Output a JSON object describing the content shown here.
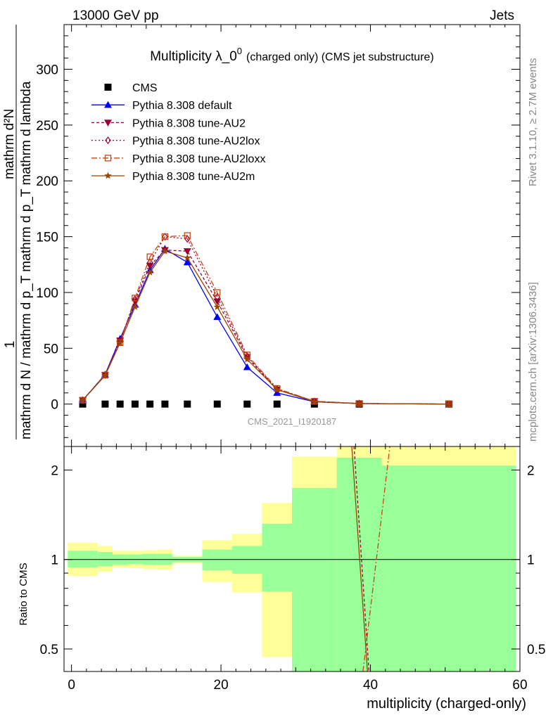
{
  "header": {
    "left": "13000 GeV pp",
    "right": "Jets"
  },
  "side_labels": {
    "rivet": "Rivet 3.1.10, ≥ 2.7M events",
    "mcplots": "mcplots.cern.ch [arXiv:1306.3436]"
  },
  "chart_data": [
    {
      "type": "line",
      "title_main": "Multiplicity λ_0",
      "title_sup": "0",
      "title_rest": "(charged only) (CMS jet substructure)",
      "ylabel_num": "1",
      "ylabel_den": "mathrm d N / mathrm d p_T mathrm d p_T mathrm d lambda",
      "ylabel_top": "mathrm d²N",
      "watermark": "CMS_2021_I1920187",
      "xlim": [
        -1,
        60
      ],
      "ylim": [
        -38,
        340
      ],
      "yticks": [
        0,
        50,
        100,
        150,
        200,
        250,
        300
      ],
      "legend_position": "top-left",
      "series": [
        {
          "name": "CMS",
          "color": "#000000",
          "marker": "square",
          "dash": "none",
          "x": [
            1.5,
            4.5,
            6.5,
            8.5,
            10.5,
            12.5,
            15.5,
            19.5,
            23.5,
            27.5,
            32.5,
            38.5,
            50.5
          ],
          "y": [
            0,
            0,
            0,
            0,
            0,
            0,
            0,
            0,
            0,
            0,
            0,
            0,
            0
          ]
        },
        {
          "name": "Pythia 8.308 default",
          "color": "#0000ff",
          "marker": "triangle-up",
          "dash": "solid",
          "x": [
            1.5,
            4.5,
            6.5,
            8.5,
            10.5,
            12.5,
            15.5,
            19.5,
            23.5,
            27.5,
            32.5,
            38.5,
            50.5
          ],
          "y": [
            3.5,
            26.5,
            58.5,
            89,
            120,
            139,
            127,
            78,
            33,
            10,
            2,
            0.5,
            0
          ]
        },
        {
          "name": "Pythia 8.308 tune-AU2",
          "color": "#990033",
          "marker": "triangle-down",
          "dash": "4,3",
          "x": [
            1.5,
            4.5,
            6.5,
            8.5,
            10.5,
            12.5,
            15.5,
            19.5,
            23.5,
            27.5,
            32.5,
            38.5,
            50.5
          ],
          "y": [
            3.5,
            26,
            57,
            92,
            124,
            138,
            137,
            92,
            42,
            13,
            2.5,
            0.5,
            0
          ]
        },
        {
          "name": "Pythia 8.308 tune-AU2lox",
          "color": "#990033",
          "marker": "diamond",
          "dash": "2,3",
          "x": [
            1.5,
            4.5,
            6.5,
            8.5,
            10.5,
            12.5,
            15.5,
            19.5,
            23.5,
            27.5,
            32.5,
            38.5,
            50.5
          ],
          "y": [
            3.5,
            26,
            56,
            94,
            127,
            150,
            148,
            96,
            43,
            13.5,
            2.5,
            0.5,
            0
          ]
        },
        {
          "name": "Pythia 8.308 tune-AU2loxx",
          "color": "#cc4411",
          "marker": "open-square",
          "dash": "8,3,2,3",
          "x": [
            1.5,
            4.5,
            6.5,
            8.5,
            10.5,
            12.5,
            15.5,
            19.5,
            23.5,
            27.5,
            32.5,
            38.5,
            50.5
          ],
          "y": [
            3.5,
            26,
            55,
            95,
            132,
            150,
            151,
            100,
            44,
            14,
            2.5,
            0.5,
            0
          ]
        },
        {
          "name": "Pythia 8.308 tune-AU2m",
          "color": "#994400",
          "marker": "star",
          "dash": "solid",
          "x": [
            1.5,
            4.5,
            6.5,
            8.5,
            10.5,
            12.5,
            15.5,
            19.5,
            23.5,
            27.5,
            32.5,
            38.5,
            50.5
          ],
          "y": [
            3.5,
            25.5,
            55,
            87,
            118,
            137,
            131,
            87,
            40,
            13,
            2,
            0.5,
            0
          ]
        }
      ]
    },
    {
      "type": "area",
      "ylabel": "Ratio to CMS",
      "xlabel": "multiplicity (charged-only)",
      "xlim": [
        -1,
        60
      ],
      "ylim": [
        0.42,
        2.4
      ],
      "ylog": true,
      "yticks": [
        0.5,
        1,
        2
      ],
      "xticks": [
        0,
        20,
        40,
        60
      ],
      "reference_line": 1,
      "band_colors": {
        "outer": "#ffff99",
        "inner": "#99ff99"
      },
      "bins": [
        {
          "lo": -0.5,
          "hi": 3.5,
          "inner": [
            0.94,
            1.07
          ],
          "outer": [
            0.88,
            1.14
          ]
        },
        {
          "lo": 3.5,
          "hi": 5.5,
          "inner": [
            0.95,
            1.06
          ],
          "outer": [
            0.91,
            1.11
          ]
        },
        {
          "lo": 5.5,
          "hi": 7.5,
          "inner": [
            0.96,
            1.04
          ],
          "outer": [
            0.94,
            1.07
          ]
        },
        {
          "lo": 7.5,
          "hi": 9.5,
          "inner": [
            0.965,
            1.04
          ],
          "outer": [
            0.935,
            1.07
          ]
        },
        {
          "lo": 9.5,
          "hi": 11.5,
          "inner": [
            0.96,
            1.045
          ],
          "outer": [
            0.93,
            1.075
          ]
        },
        {
          "lo": 11.5,
          "hi": 13.5,
          "inner": [
            0.96,
            1.045
          ],
          "outer": [
            0.925,
            1.08
          ]
        },
        {
          "lo": 13.5,
          "hi": 17.5,
          "inner": [
            0.98,
            1.02
          ],
          "outer": [
            0.97,
            1.03
          ]
        },
        {
          "lo": 17.5,
          "hi": 21.5,
          "inner": [
            0.92,
            1.08
          ],
          "outer": [
            0.84,
            1.16
          ]
        },
        {
          "lo": 21.5,
          "hi": 25.5,
          "inner": [
            0.895,
            1.11
          ],
          "outer": [
            0.775,
            1.22
          ]
        },
        {
          "lo": 25.5,
          "hi": 29.5,
          "inner": [
            0.78,
            1.32
          ],
          "outer": [
            0.47,
            1.55
          ]
        },
        {
          "lo": 29.5,
          "hi": 35.5,
          "inner": [
            0.42,
            1.74
          ],
          "outer": [
            0.42,
            2.22
          ]
        },
        {
          "lo": 35.5,
          "hi": 41.5,
          "inner": [
            0.42,
            2.2
          ],
          "outer": [
            0.42,
            2.4
          ]
        },
        {
          "lo": 41.5,
          "hi": 59.5,
          "inner": [
            0.42,
            2.07
          ],
          "outer": [
            0.42,
            2.4
          ]
        }
      ],
      "ratio_lines": [
        {
          "name": "Pythia 8.308 tune-AU2m",
          "color": "#994400",
          "dash": "solid",
          "x": [
            37.5,
            39.6
          ],
          "y": [
            2.4,
            0.42
          ]
        },
        {
          "name": "Pythia 8.308 tune-AU2",
          "color": "#990033",
          "dash": "4,3",
          "x": [
            37.8,
            39.8
          ],
          "y": [
            2.4,
            0.42
          ]
        },
        {
          "name": "Pythia 8.308 tune-AU2loxx",
          "color": "#cc4411",
          "dash": "8,3,2,3",
          "x": [
            39.0,
            42.6
          ],
          "y": [
            0.42,
            2.4
          ]
        }
      ]
    }
  ]
}
